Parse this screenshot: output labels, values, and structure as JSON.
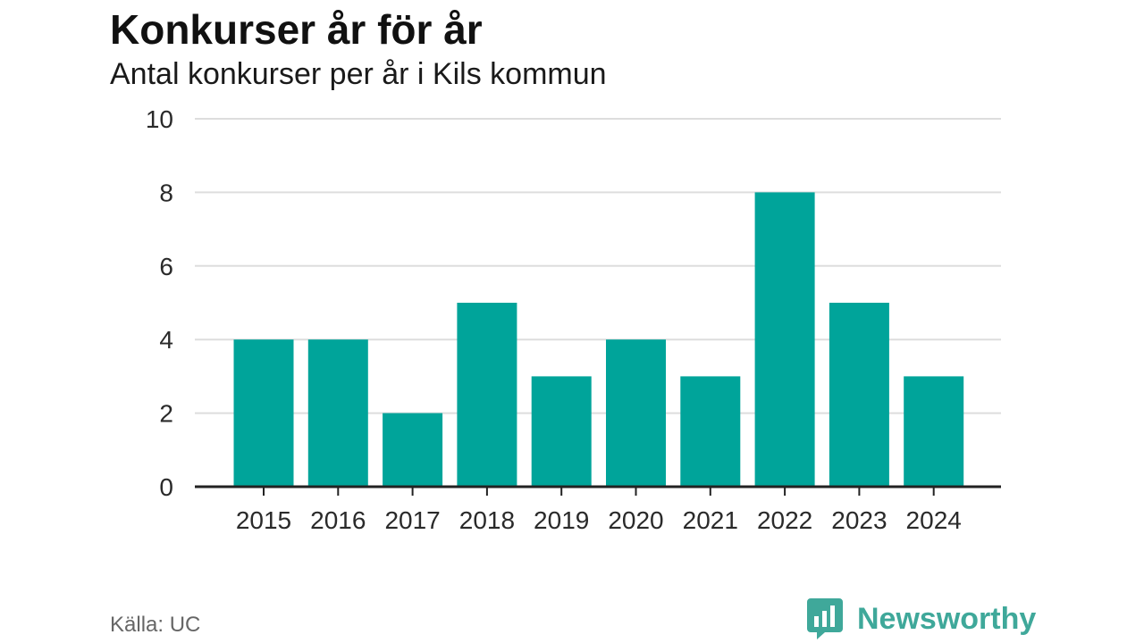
{
  "header": {
    "title": "Konkurser år för år",
    "subtitle": "Antal konkurser per år i Kils kommun"
  },
  "footer": {
    "source": "Källa: UC",
    "brand": "Newsworthy",
    "brand_icon": "bar-chart-speech-bubble-icon"
  },
  "colors": {
    "bar": "#00a49a",
    "brand": "#3fa89a",
    "grid": "#dddddd",
    "axis": "#222222"
  },
  "chart_data": {
    "type": "bar",
    "categories": [
      "2015",
      "2016",
      "2017",
      "2018",
      "2019",
      "2020",
      "2021",
      "2022",
      "2023",
      "2024"
    ],
    "values": [
      4,
      4,
      2,
      5,
      3,
      4,
      3,
      8,
      5,
      3
    ],
    "title": "Konkurser år för år",
    "subtitle": "Antal konkurser per år i Kils kommun",
    "xlabel": "",
    "ylabel": "",
    "ylim": [
      0,
      10
    ],
    "yticks": [
      "0",
      "2",
      "4",
      "6",
      "8",
      "10"
    ],
    "grid": true,
    "legend": "none"
  }
}
